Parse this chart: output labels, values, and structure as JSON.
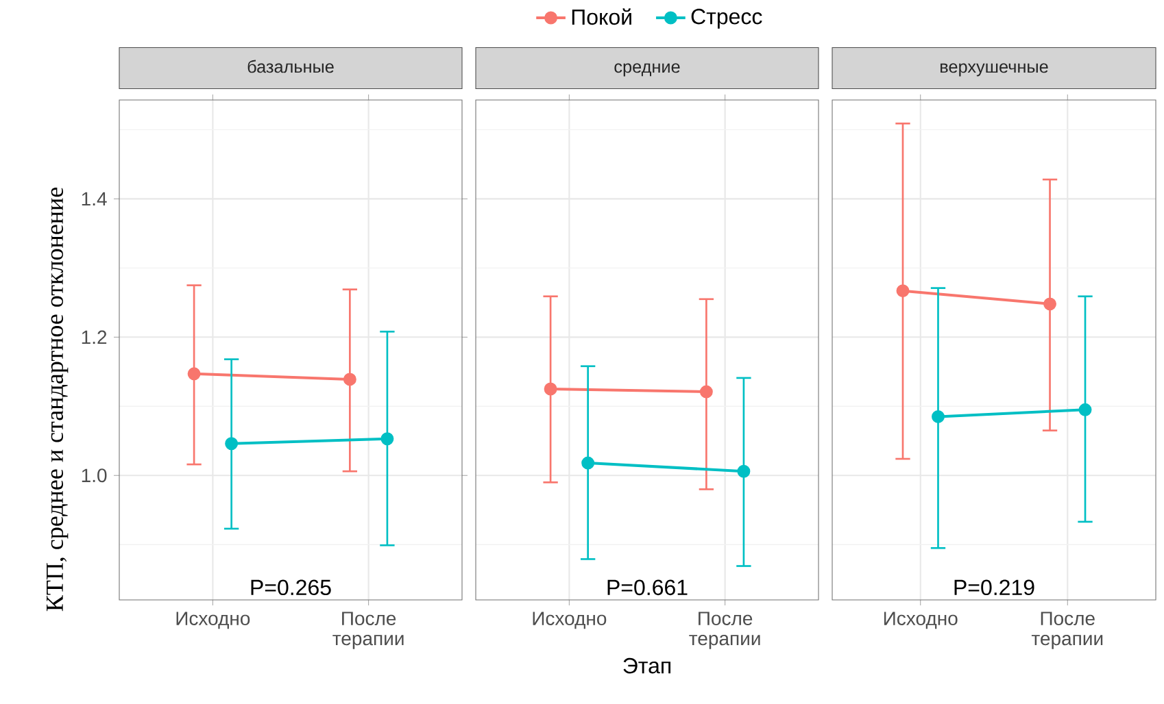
{
  "chart_data": [
    {
      "type": "line",
      "title": "базальные",
      "ylabel": "КТП, среднее и стандартное отклонение",
      "categories": [
        "Исходно",
        "После терапии"
      ],
      "legend": "top",
      "grid": true,
      "marker": "circle",
      "line_style": "solid",
      "ylim": [
        0.82,
        1.543
      ],
      "yticks": [
        {
          "value": 0.9,
          "label": null
        },
        {
          "value": 1.0,
          "label": "1.0"
        },
        {
          "value": 1.1,
          "label": null
        },
        {
          "value": 1.2,
          "label": "1.2"
        },
        {
          "value": 1.3,
          "label": null
        },
        {
          "value": 1.4,
          "label": "1.4"
        },
        {
          "value": 1.5,
          "label": null
        }
      ],
      "annotations": [
        "P=0.265"
      ],
      "series": [
        {
          "name": "Покой",
          "color": "#f8766d",
          "values": [
            1.147,
            1.139
          ],
          "errors": [
            [
              1.016,
              1.275
            ],
            [
              1.006,
              1.269
            ]
          ]
        },
        {
          "name": "Стресс",
          "color": "#00bfc4",
          "values": [
            1.046,
            1.053
          ],
          "errors": [
            [
              0.923,
              1.168
            ],
            [
              0.899,
              1.208
            ]
          ]
        }
      ]
    },
    {
      "type": "line",
      "title": "средние",
      "xlabel": "Этап",
      "categories": [
        "Исходно",
        "После терапии"
      ],
      "grid": true,
      "marker": "circle",
      "line_style": "solid",
      "tick_labels": "x",
      "ylim": [
        0.82,
        1.543
      ],
      "yticks": [
        0.9,
        1.0,
        1.1,
        1.2,
        1.3,
        1.4,
        1.5
      ],
      "annotations": [
        "P=0.661"
      ],
      "series": [
        {
          "color": "#f8766d",
          "values": [
            1.125,
            1.121
          ],
          "errors": [
            [
              0.99,
              1.259
            ],
            [
              0.98,
              1.255
            ]
          ]
        },
        {
          "color": "#00bfc4",
          "values": [
            1.018,
            1.006
          ],
          "errors": [
            [
              0.879,
              1.158
            ],
            [
              0.869,
              1.141
            ]
          ]
        }
      ]
    },
    {
      "type": "line",
      "title": "верхушечные",
      "categories": [
        "Исходно",
        "После терапии"
      ],
      "grid": true,
      "marker": "circle",
      "line_style": "solid",
      "tick_labels": "x",
      "ylim": [
        0.82,
        1.543
      ],
      "yticks": [
        0.9,
        1.0,
        1.1,
        1.2,
        1.3,
        1.4,
        1.5
      ],
      "annotations": [
        "P=0.219"
      ],
      "series": [
        {
          "color": "#f8766d",
          "values": [
            1.267,
            1.248
          ],
          "errors": [
            [
              1.024,
              1.509
            ],
            [
              1.065,
              1.428
            ]
          ]
        },
        {
          "color": "#00bfc4",
          "values": [
            1.085,
            1.095
          ],
          "errors": [
            [
              0.895,
              1.271
            ],
            [
              0.933,
              1.259
            ]
          ]
        }
      ]
    }
  ]
}
